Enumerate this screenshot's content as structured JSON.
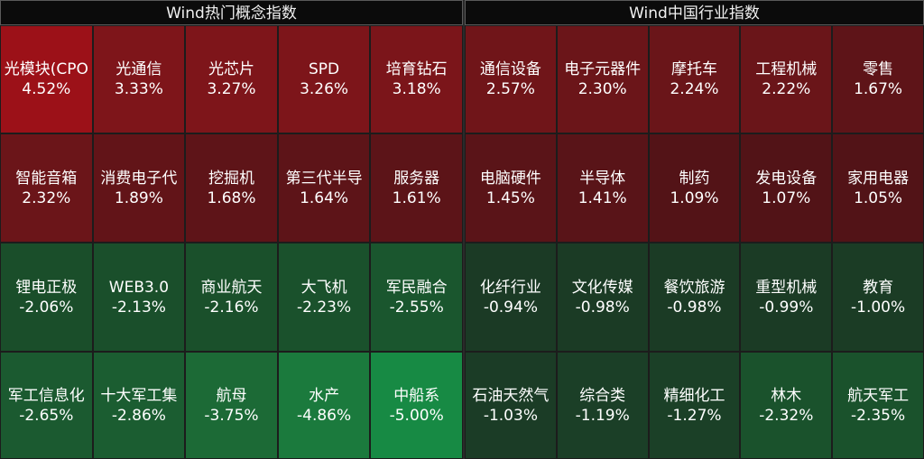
{
  "left": {
    "title": "Wind热门概念指数",
    "cells": [
      {
        "name": "光模块(CPO",
        "value": "4.52%",
        "color": "#9c1118"
      },
      {
        "name": "光通信",
        "value": "3.33%",
        "color": "#7e151a"
      },
      {
        "name": "光芯片",
        "value": "3.27%",
        "color": "#7e151a"
      },
      {
        "name": "SPD",
        "value": "3.26%",
        "color": "#7d151a"
      },
      {
        "name": "培育钻石",
        "value": "3.18%",
        "color": "#7b151a"
      },
      {
        "name": "智能音箱",
        "value": "2.32%",
        "color": "#6b1519"
      },
      {
        "name": "消费电子代",
        "value": "1.89%",
        "color": "#621418"
      },
      {
        "name": "挖掘机",
        "value": "1.68%",
        "color": "#5e1418"
      },
      {
        "name": "第三代半导",
        "value": "1.64%",
        "color": "#5d1418"
      },
      {
        "name": "服务器",
        "value": "1.61%",
        "color": "#5c1418"
      },
      {
        "name": "锂电正极",
        "value": "-2.06%",
        "color": "#1a4e2a"
      },
      {
        "name": "WEB3.0",
        "value": "-2.13%",
        "color": "#1a4f2b"
      },
      {
        "name": "商业航天",
        "value": "-2.16%",
        "color": "#1a502b"
      },
      {
        "name": "大飞机",
        "value": "-2.23%",
        "color": "#1a512c"
      },
      {
        "name": "军民融合",
        "value": "-2.55%",
        "color": "#1a562e"
      },
      {
        "name": "军工信息化",
        "value": "-2.65%",
        "color": "#1b5a30"
      },
      {
        "name": "十大军工集",
        "value": "-2.86%",
        "color": "#1b5d31"
      },
      {
        "name": "航母",
        "value": "-3.75%",
        "color": "#1c6a36"
      },
      {
        "name": "水产",
        "value": "-4.86%",
        "color": "#1b7a3d"
      },
      {
        "name": "中船系",
        "value": "-5.00%",
        "color": "#178a44"
      }
    ]
  },
  "right": {
    "title": "Wind中国行业指数",
    "cells": [
      {
        "name": "通信设备",
        "value": "2.57%",
        "color": "#701519"
      },
      {
        "name": "电子元器件",
        "value": "2.30%",
        "color": "#6b1519"
      },
      {
        "name": "摩托车",
        "value": "2.24%",
        "color": "#6a1519"
      },
      {
        "name": "工程机械",
        "value": "2.22%",
        "color": "#6a1519"
      },
      {
        "name": "零售",
        "value": "1.67%",
        "color": "#5e1418"
      },
      {
        "name": "电脑硬件",
        "value": "1.45%",
        "color": "#5a1418"
      },
      {
        "name": "半导体",
        "value": "1.41%",
        "color": "#591418"
      },
      {
        "name": "制药",
        "value": "1.09%",
        "color": "#531317"
      },
      {
        "name": "发电设备",
        "value": "1.07%",
        "color": "#521317"
      },
      {
        "name": "家用电器",
        "value": "1.05%",
        "color": "#521317"
      },
      {
        "name": "化纤行业",
        "value": "-0.94%",
        "color": "#1b3a25"
      },
      {
        "name": "文化传媒",
        "value": "-0.98%",
        "color": "#1b3b25"
      },
      {
        "name": "餐饮旅游",
        "value": "-0.98%",
        "color": "#1b3b25"
      },
      {
        "name": "重型机械",
        "value": "-0.99%",
        "color": "#1b3b25"
      },
      {
        "name": "教育",
        "value": "-1.00%",
        "color": "#1b3c25"
      },
      {
        "name": "石油天然气",
        "value": "-1.03%",
        "color": "#1b3c26"
      },
      {
        "name": "综合类",
        "value": "-1.19%",
        "color": "#1b3f27"
      },
      {
        "name": "精细化工",
        "value": "-1.27%",
        "color": "#1b4027"
      },
      {
        "name": "林木",
        "value": "-2.32%",
        "color": "#1a522c"
      },
      {
        "name": "航天军工",
        "value": "-2.35%",
        "color": "#1a522c"
      }
    ]
  }
}
